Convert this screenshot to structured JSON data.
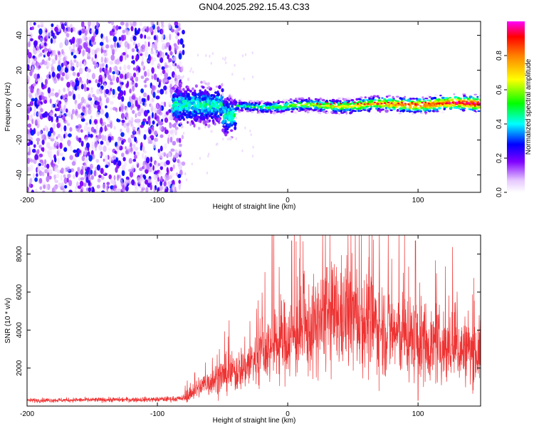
{
  "page_title": "GN04.2025.292.15.43.C33",
  "chart_data": [
    {
      "type": "heatmap",
      "title": "GN04.2025.292.15.43.C33",
      "xlabel": "Height of straight line (km)",
      "ylabel": "Frequency (Hz)",
      "xlim": [
        -200,
        148
      ],
      "ylim": [
        -50,
        48
      ],
      "x_ticks": [
        -200,
        -100,
        0,
        100
      ],
      "y_ticks": [
        -40,
        -20,
        0,
        20,
        40
      ],
      "colorbar": {
        "label": "Normalized spectral amplitude",
        "range": [
          0,
          1
        ],
        "ticks": [
          0.0,
          0.2,
          0.4,
          0.6,
          0.8
        ],
        "tick_labels": [
          "0.0",
          "0.2",
          "0.4",
          "0.6",
          "0.8"
        ]
      },
      "regions": [
        {
          "name": "noise",
          "x_range": [
            -200,
            -80
          ],
          "freq_range": [
            -50,
            48
          ],
          "amplitude_range": [
            0.05,
            0.25
          ]
        },
        {
          "name": "signal-onset",
          "x_range": [
            -88,
            -40
          ],
          "freq_center": 0,
          "freq_spread": 10,
          "amplitude_range": [
            0.15,
            0.45
          ]
        },
        {
          "name": "stable-signal",
          "x_range": [
            -40,
            148
          ],
          "freq_center": 1,
          "freq_spread": 5,
          "peak_amplitude": 1.0
        }
      ]
    },
    {
      "type": "line",
      "xlabel": "Height of straight line (km)",
      "ylabel": "SNR (10 * v/v)",
      "xlim": [
        -200,
        148
      ],
      "ylim": [
        0,
        9000
      ],
      "x_ticks": [
        -200,
        -100,
        0,
        100
      ],
      "y_ticks": [
        2000,
        4000,
        6000,
        8000
      ],
      "color": "#ee3333",
      "envelope": {
        "x": [
          -200,
          -100,
          -80,
          -70,
          -60,
          -50,
          -40,
          -30,
          -20,
          -10,
          0,
          10,
          20,
          30,
          40,
          50,
          60,
          70,
          80,
          90,
          100,
          110,
          120,
          130,
          140,
          148
        ],
        "mean": [
          300,
          350,
          400,
          900,
          1300,
          1600,
          1800,
          2200,
          2800,
          3200,
          3600,
          3800,
          4100,
          4500,
          4700,
          4800,
          4500,
          4200,
          3900,
          3700,
          3400,
          3200,
          3100,
          3000,
          2900,
          2800
        ]
      },
      "spikes": [
        {
          "x": -12,
          "y": 9000
        },
        {
          "x": 3,
          "y": 8700
        },
        {
          "x": 98,
          "y": 8700
        },
        {
          "x": 30,
          "y": 7300
        },
        {
          "x": 100,
          "y": 300
        }
      ]
    }
  ]
}
